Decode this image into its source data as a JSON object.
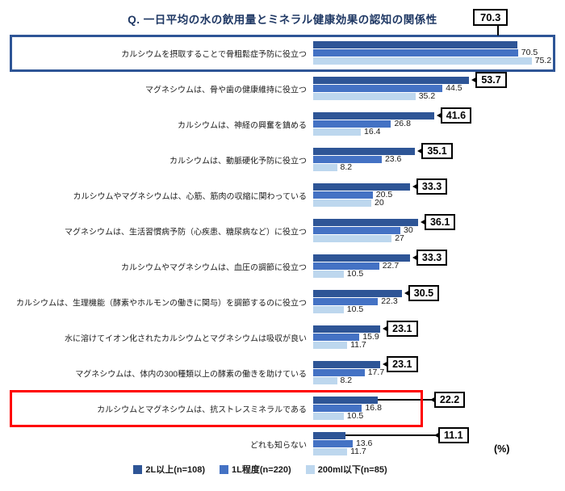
{
  "title": "Q. 一日平均の水の飲用量とミネラル健康効果の認知の関係性",
  "unit_label": "(%)",
  "chart_data": {
    "type": "bar",
    "orientation": "horizontal",
    "title": "Q. 一日平均の水の飲用量とミネラル健康効果の認知の関係性",
    "value_unit": "%",
    "xlim": [
      0,
      80
    ],
    "legend_position": "bottom",
    "categories": [
      "カルシウムを摂取することで骨粗鬆症予防に役立つ",
      "マグネシウムは、骨や歯の健康維持に役立つ",
      "カルシウムは、神経の興奮を鎮める",
      "カルシウムは、動脈硬化予防に役立つ",
      "カルシウムやマグネシウムは、心筋、筋肉の収縮に関わっている",
      "マグネシウムは、生活習慣病予防（心疾患、糖尿病など）に役立つ",
      "カルシウムやマグネシウムは、血圧の調節に役立つ",
      "カルシウムは、生理機能（酵素やホルモンの働きに関与）を調節するのに役立つ",
      "水に溶けてイオン化されたカルシウムとマグネシウムは吸収が良い",
      "マグネシウムは、体内の300種類以上の酵素の働きを助けている",
      "カルシウムとマグネシウムは、抗ストレスミネラルである",
      "どれも知らない"
    ],
    "series": [
      {
        "name": "2L以上(n=108)",
        "color": "#2E5596",
        "values": [
          70.3,
          53.7,
          41.6,
          35.1,
          33.3,
          36.1,
          33.3,
          30.5,
          23.1,
          23.1,
          22.2,
          11.1
        ]
      },
      {
        "name": "1L程度(n=220)",
        "color": "#4472C4",
        "values": [
          70.5,
          44.5,
          26.8,
          23.6,
          20.5,
          30,
          22.7,
          22.3,
          15.9,
          17.7,
          16.8,
          13.6
        ]
      },
      {
        "name": "200ml以下(n=85)",
        "color": "#BDD7EE",
        "values": [
          75.2,
          35.2,
          16.4,
          8.2,
          20,
          27,
          10.5,
          10.5,
          11.7,
          8.2,
          10.5,
          11.7
        ]
      }
    ],
    "callout_series_index": 0,
    "callout_style": {
      "border_color": "#000000",
      "background": "#FFFFFF"
    },
    "highlights": [
      {
        "row_index": 0,
        "category": "カルシウムを摂取することで骨粗鬆症予防に役立つ",
        "color": "#2E5596",
        "full_width": true
      },
      {
        "row_index": 10,
        "category": "カルシウムとマグネシウムは、抗ストレスミネラルである",
        "color": "#FF0000",
        "full_width": false
      }
    ]
  }
}
